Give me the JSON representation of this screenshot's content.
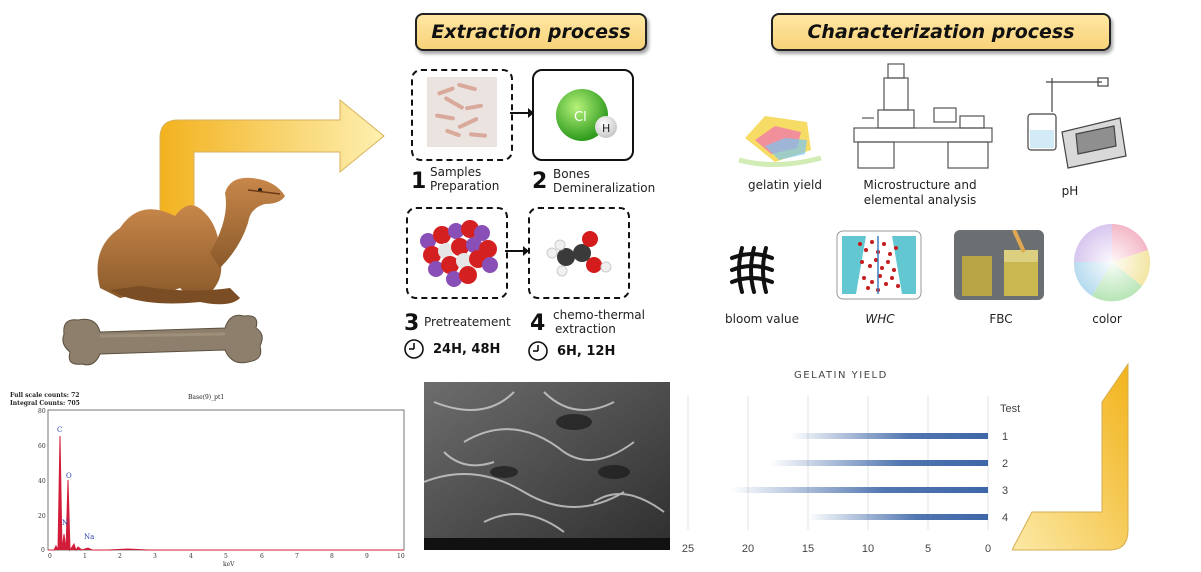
{
  "headers": {
    "extraction": "Extraction process",
    "characterization": "Characterization process"
  },
  "steps": [
    {
      "num": "1",
      "label_line1": "Samples",
      "label_line2": "Preparation"
    },
    {
      "num": "2",
      "label_line1": "Bones",
      "label_line2": "Demineralization"
    },
    {
      "num": "3",
      "label_line1": "Pretreatement",
      "label_line2": ""
    },
    {
      "num": "4",
      "label_line1": "chemo-thermal",
      "label_line2": "extraction"
    }
  ],
  "molecule_labels": {
    "cl": "Cl",
    "h": "H"
  },
  "timers": [
    {
      "value": "24H, 48H"
    },
    {
      "value": "6H, 12H"
    }
  ],
  "characterization_items": [
    {
      "label": "gelatin yield"
    },
    {
      "label_line1": "Microstructure and",
      "label_line2": "elemental analysis"
    },
    {
      "label": "pH"
    },
    {
      "label": "bloom value"
    },
    {
      "label": "WHC"
    },
    {
      "label": "FBC"
    },
    {
      "label": "color"
    }
  ],
  "edx_spectrum": {
    "header_line1": "Full scale counts: 72",
    "header_line2": "Integral Counts: 705",
    "title": "Base(9)_pt1",
    "xlabel": "keV",
    "y_ticks": [
      "80",
      "60",
      "40",
      "20",
      "0"
    ],
    "x_ticks": [
      "0",
      "1",
      "2",
      "3",
      "4",
      "5",
      "6",
      "7",
      "8",
      "9",
      "10"
    ],
    "peak_labels": [
      "C",
      "O",
      "N",
      "Na"
    ]
  },
  "chart_data": {
    "type": "bar",
    "title": "GELATIN YIELD",
    "legend_title": "Test",
    "categories": [
      "1",
      "2",
      "3",
      "4"
    ],
    "values": [
      16.5,
      18.2,
      21.5,
      15.0
    ],
    "x_ticks": [
      "25",
      "20",
      "15",
      "10",
      "5",
      "0"
    ],
    "xlim": [
      0,
      25
    ],
    "orientation": "horizontal-reversed",
    "bar_color": "#3e67a8"
  }
}
